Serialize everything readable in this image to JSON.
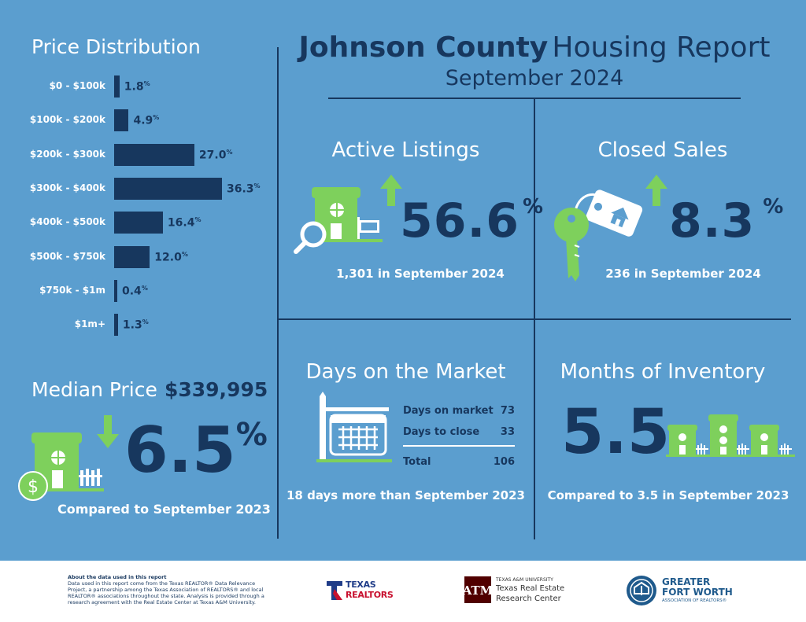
{
  "header": {
    "title_bold": "Johnson County",
    "title_light": "Housing Report",
    "subtitle": "September 2024"
  },
  "price_distribution": {
    "title": "Price Distribution",
    "chart_data": {
      "type": "bar",
      "orientation": "horizontal",
      "title": "Price Distribution",
      "categories": [
        "$0 - $100k",
        "$100k - $200k",
        "$200k - $300k",
        "$300k - $400k",
        "$400k - $500k",
        "$500k - $750k",
        "$750k - $1m",
        "$1m+"
      ],
      "values": [
        1.8,
        4.9,
        27.0,
        36.3,
        16.4,
        12.0,
        0.4,
        1.3
      ],
      "value_labels": [
        "1.8",
        "4.9",
        "27.0",
        "36.3",
        "16.4",
        "12.0",
        "0.4",
        "1.3"
      ],
      "unit": "%"
    }
  },
  "median_price": {
    "label": "Median Price",
    "value": "$339,995",
    "change": "6.5",
    "change_unit": "%",
    "direction": "down",
    "comparison": "Compared to September 2023"
  },
  "active_listings": {
    "title": "Active Listings",
    "change": "56.6",
    "change_unit": "%",
    "direction": "up",
    "detail": "1,301 in September 2024"
  },
  "closed_sales": {
    "title": "Closed Sales",
    "change": "8.3",
    "change_unit": "%",
    "direction": "up",
    "detail": "236 in September 2024"
  },
  "days_on_market": {
    "title": "Days on the Market",
    "rows": [
      {
        "label": "Days on market",
        "value": "73"
      },
      {
        "label": "Days to close",
        "value": "33"
      }
    ],
    "total_label": "Total",
    "total_value": "106",
    "comparison": "18 days more than September 2023"
  },
  "months_inventory": {
    "title": "Months of Inventory",
    "value": "5.5",
    "comparison": "Compared to 3.5 in September 2023"
  },
  "footer": {
    "about_heading": "About the data used in this report",
    "about_text": "Data used in this report come from the Texas REALTOR® Data Relevance Project, a partnership among the Texas Association of REALTORS® and local REALTOR® associations throughout the state. Analysis is provided through a research agreement with the Real Estate Center at Texas A&M University.",
    "logo1_line1": "TEXAS",
    "logo1_line2": "REALTORS",
    "logo2_univ": "TEXAS A&M UNIVERSITY",
    "logo2_line1": "Texas Real Estate",
    "logo2_line2": "Research Center",
    "logo3_line1": "GREATER",
    "logo3_line2": "FORT WORTH",
    "logo3_line3": "ASSOCIATION OF REALTORS®"
  },
  "colors": {
    "background": "#5b9ecf",
    "navy": "#17375e",
    "green": "#7ed05c",
    "white": "#ffffff"
  }
}
